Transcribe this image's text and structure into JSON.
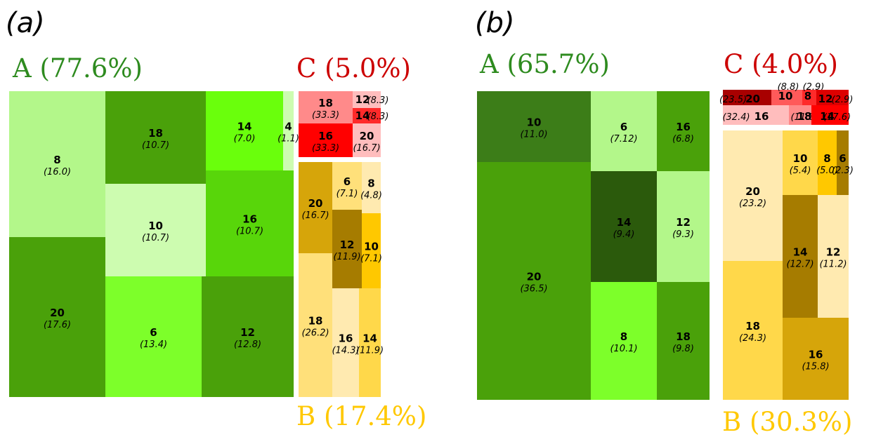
{
  "panels": [
    {
      "label": "(a)",
      "groups": [
        {
          "name": "A",
          "share": "(77.6%)",
          "color": "#2e8b1f"
        },
        {
          "name": "C",
          "share": "(5.0%)",
          "color": "#cc0000"
        },
        {
          "name": "B",
          "share": "(17.4%)",
          "color": "#ffc800"
        }
      ]
    },
    {
      "label": "(b)",
      "groups": [
        {
          "name": "A",
          "share": "(65.7%)",
          "color": "#2e8b1f"
        },
        {
          "name": "C",
          "share": "(4.0%)",
          "color": "#cc0000"
        },
        {
          "name": "B",
          "share": "(30.3%)",
          "color": "#ffc800"
        }
      ]
    }
  ],
  "chart_data": [
    {
      "type": "treemap",
      "panel": "(a)",
      "groups": [
        {
          "name": "A",
          "share_pct": 77.6,
          "cells": [
            {
              "label": "8",
              "pct": "16.0",
              "color": "#b3f78a"
            },
            {
              "label": "20",
              "pct": "17.6",
              "color": "#4aa10a"
            },
            {
              "label": "18",
              "pct": "10.7",
              "color": "#4aa10a"
            },
            {
              "label": "10",
              "pct": "10.7",
              "color": "#cdfcb0"
            },
            {
              "label": "6",
              "pct": "13.4",
              "color": "#7dff2a"
            },
            {
              "label": "14",
              "pct": "7.0",
              "color": "#6aff0c"
            },
            {
              "label": "4",
              "pct": "1.1",
              "color": "#cdfcb0"
            },
            {
              "label": "16",
              "pct": "10.7",
              "color": "#58d60a"
            },
            {
              "label": "12",
              "pct": "12.8",
              "color": "#4aa10a"
            }
          ]
        },
        {
          "name": "C",
          "share_pct": 5.0,
          "cells": [
            {
              "label": "18",
              "pct": "33.3",
              "color": "#ff8a8a"
            },
            {
              "label": "12",
              "pct": "8.3",
              "color": "#ffbdbd"
            },
            {
              "label": "14",
              "pct": "8.3",
              "color": "#ff2a2a"
            },
            {
              "label": "16",
              "pct": "33.3",
              "color": "#ff0000"
            },
            {
              "label": "20",
              "pct": "16.7",
              "color": "#ffbdbd"
            }
          ]
        },
        {
          "name": "B",
          "share_pct": 17.4,
          "cells": [
            {
              "label": "20",
              "pct": "16.7",
              "color": "#d6a50a"
            },
            {
              "label": "6",
              "pct": "7.1",
              "color": "#ffe07a"
            },
            {
              "label": "8",
              "pct": "4.8",
              "color": "#ffeab0"
            },
            {
              "label": "12",
              "pct": "11.9",
              "color": "#a67c00"
            },
            {
              "label": "10",
              "pct": "7.1",
              "color": "#ffc800"
            },
            {
              "label": "18",
              "pct": "26.2",
              "color": "#ffe07a"
            },
            {
              "label": "16",
              "pct": "14.3",
              "color": "#ffeab0"
            },
            {
              "label": "14",
              "pct": "11.9",
              "color": "#ffd84a"
            }
          ]
        }
      ]
    },
    {
      "type": "treemap",
      "panel": "(b)",
      "groups": [
        {
          "name": "A",
          "share_pct": 65.7,
          "cells": [
            {
              "label": "10",
              "pct": "11.0",
              "color": "#3c7d18"
            },
            {
              "label": "20",
              "pct": "36.5",
              "color": "#4aa10a"
            },
            {
              "label": "6",
              "pct": "7.12",
              "color": "#b3f78a"
            },
            {
              "label": "16",
              "pct": "6.8",
              "color": "#4aa10a"
            },
            {
              "label": "14",
              "pct": "9.4",
              "color": "#2b5a0c"
            },
            {
              "label": "12",
              "pct": "9.3",
              "color": "#b3f78a"
            },
            {
              "label": "8",
              "pct": "10.1",
              "color": "#7dff2a"
            },
            {
              "label": "18",
              "pct": "9.8",
              "color": "#4aa10a"
            }
          ]
        },
        {
          "name": "C",
          "share_pct": 4.0,
          "cells": [
            {
              "label": "20",
              "pct": "23.5",
              "color": "#a80000"
            },
            {
              "label": "10",
              "pct": "8.8",
              "color": "#ff5a5a"
            },
            {
              "label": "8",
              "pct": "2.9",
              "color": "#ff2a2a"
            },
            {
              "label": "12",
              "pct": "2.9",
              "color": "#dd0000"
            },
            {
              "label": "16",
              "pct": "32.4",
              "color": "#ffbdbd"
            },
            {
              "label": "18",
              "pct": "11.8",
              "color": "#ff8a8a"
            },
            {
              "label": "14",
              "pct": "17.6",
              "color": "#ff0000"
            }
          ]
        },
        {
          "name": "B",
          "share_pct": 30.3,
          "cells": [
            {
              "label": "20",
              "pct": "23.2",
              "color": "#ffeab0"
            },
            {
              "label": "10",
              "pct": "5.4",
              "color": "#ffd84a"
            },
            {
              "label": "8",
              "pct": "5.0",
              "color": "#ffc800"
            },
            {
              "label": "6",
              "pct": "2.3",
              "color": "#a67c00"
            },
            {
              "label": "14",
              "pct": "12.7",
              "color": "#a67c00"
            },
            {
              "label": "12",
              "pct": "11.2",
              "color": "#ffeab0"
            },
            {
              "label": "18",
              "pct": "24.3",
              "color": "#ffd84a"
            },
            {
              "label": "16",
              "pct": "15.8",
              "color": "#d6a50a"
            }
          ]
        }
      ]
    }
  ]
}
